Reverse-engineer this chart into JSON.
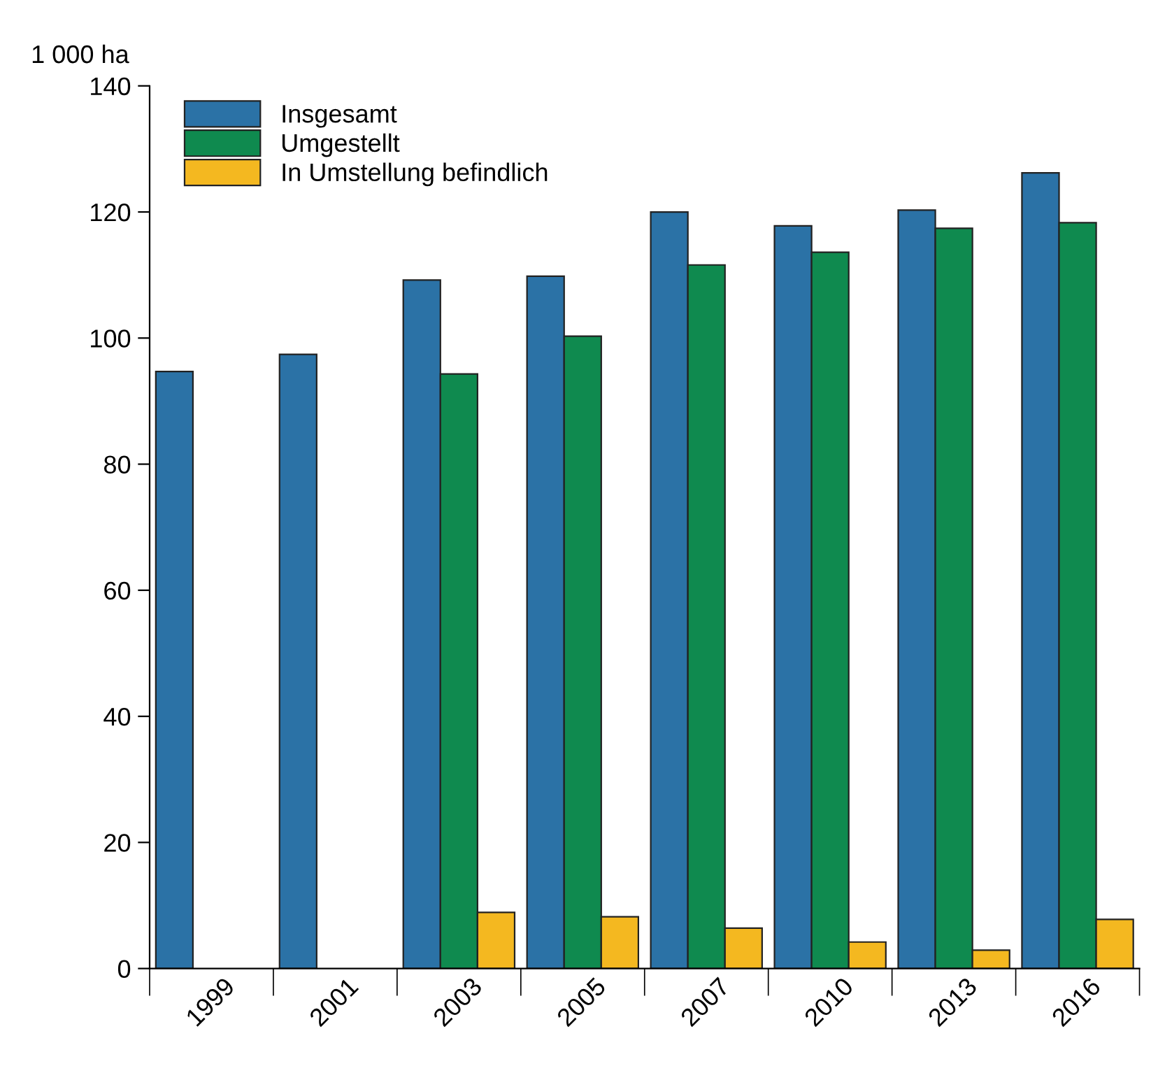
{
  "chart_data": {
    "type": "bar",
    "ylabel": "1 000 ha",
    "categories": [
      "1999",
      "2001",
      "2003",
      "2005",
      "2007",
      "2010",
      "2013",
      "2016"
    ],
    "series": [
      {
        "name": "Insgesamt",
        "color": "#2b72a6",
        "values": [
          94.7,
          97.4,
          109.2,
          109.8,
          120,
          117.8,
          120.3,
          126.2
        ]
      },
      {
        "name": "Umgestellt",
        "color": "#0f8a4f",
        "values": [
          null,
          null,
          94.3,
          100.3,
          111.6,
          113.6,
          117.4,
          118.3
        ]
      },
      {
        "name": "In Umstellung befindlich",
        "color": "#f4b820",
        "values": [
          null,
          null,
          8.9,
          8.2,
          6.4,
          4.2,
          2.9,
          7.8
        ]
      }
    ],
    "ylim": [
      0,
      140
    ],
    "yticks": [
      0,
      20,
      40,
      60,
      80,
      100,
      120,
      140
    ],
    "grid": false,
    "legend": "top left"
  }
}
